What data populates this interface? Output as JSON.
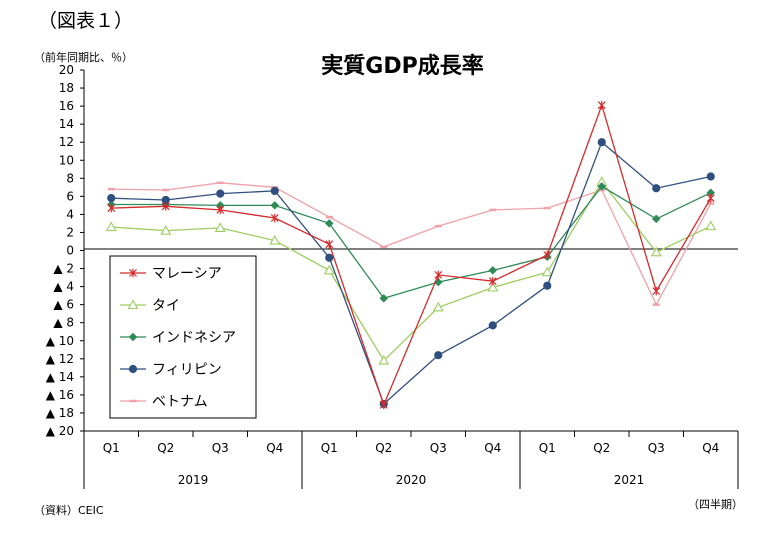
{
  "figure_label": "（図表１）",
  "unit_label": "（前年同期比、％）",
  "source_label": "（資料）CEIC",
  "period_label": "（四半期）",
  "chart_data": {
    "type": "line",
    "title": "実質GDP成長率",
    "xlabel": "",
    "ylabel": "（前年同期比、％）",
    "ylim": [
      -20,
      20
    ],
    "yticks": [
      20,
      18,
      16,
      14,
      12,
      10,
      8,
      6,
      4,
      2,
      0,
      -2,
      -4,
      -6,
      -8,
      -10,
      -12,
      -14,
      -16,
      -18,
      -20
    ],
    "ytick_labels": [
      "20",
      "18",
      "16",
      "14",
      "12",
      "10",
      "8",
      "6",
      "4",
      "2",
      "0",
      "▲ 2",
      "▲ 4",
      "▲ 6",
      "▲ 8",
      "▲ 10",
      "▲ 12",
      "▲ 14",
      "▲ 16",
      "▲ 18",
      "▲ 20"
    ],
    "categories": [
      "Q1",
      "Q2",
      "Q3",
      "Q4",
      "Q1",
      "Q2",
      "Q3",
      "Q4",
      "Q1",
      "Q2",
      "Q3",
      "Q4"
    ],
    "years": [
      "2019",
      "2020",
      "2021"
    ],
    "legend_position": "bottom-left",
    "grid": false,
    "series": [
      {
        "name": "マレーシア",
        "color": "#d42a2a",
        "marker": "asterisk",
        "values": [
          4.7,
          4.9,
          4.5,
          3.6,
          0.7,
          -17.1,
          -2.7,
          -3.4,
          -0.5,
          16.1,
          -4.5,
          5.8
        ]
      },
      {
        "name": "タイ",
        "color": "#9ccd5e",
        "marker": "triangle-open",
        "values": [
          2.6,
          2.2,
          2.5,
          1.1,
          -2.2,
          -12.2,
          -6.3,
          -4.1,
          -2.4,
          7.6,
          -0.2,
          2.7
        ]
      },
      {
        "name": "インドネシア",
        "color": "#2e8b57",
        "marker": "diamond",
        "values": [
          5.1,
          5.1,
          5.0,
          5.0,
          3.0,
          -5.3,
          -3.5,
          -2.2,
          -0.7,
          7.1,
          3.5,
          6.4
        ]
      },
      {
        "name": "フィリピン",
        "color": "#2f4f7f",
        "marker": "circle",
        "values": [
          5.8,
          5.6,
          6.3,
          6.6,
          -0.8,
          -17.0,
          -11.6,
          -8.3,
          -3.9,
          12.0,
          6.9,
          8.2
        ]
      },
      {
        "name": "ベトナム",
        "color": "#f0a0a8",
        "marker": "dash",
        "values": [
          6.8,
          6.7,
          7.5,
          7.0,
          3.7,
          0.4,
          2.7,
          4.5,
          4.7,
          6.7,
          -6.0,
          5.2
        ]
      }
    ]
  }
}
